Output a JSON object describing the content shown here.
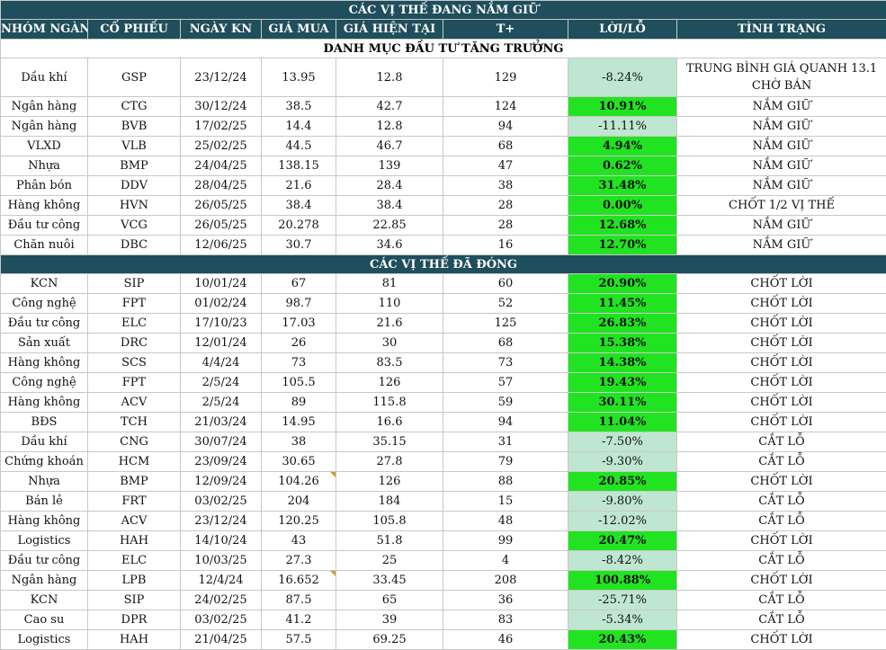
{
  "banner_top": "CÁC VỊ THẾ ĐANG NẮM GIỮ",
  "headers": [
    "NHÓM NGÀNH",
    "CỔ PHIẾU",
    "NGÀY KN",
    "GIÁ MUA",
    "GIÁ HIỆN TẠI",
    "T+",
    "LỜI/LỖ",
    "TÌNH TRẠNG"
  ],
  "section_open": "DANH MỤC ĐẦU TƯ TĂNG TRƯỞNG",
  "open_rows": [
    {
      "sector": "Dầu khí",
      "ticker": "GSP",
      "date": "23/12/24",
      "buy": "13.95",
      "current": "12.8",
      "t": "129",
      "pl": "-8.24%",
      "status": "TRUNG BÌNH GIÁ QUANH 13.1 CHỜ BÁN",
      "positive": false,
      "tall": true
    },
    {
      "sector": "Ngân hàng",
      "ticker": "CTG",
      "date": "30/12/24",
      "buy": "38.5",
      "current": "42.7",
      "t": "124",
      "pl": "10.91%",
      "status": "NẮM GIỮ",
      "positive": true
    },
    {
      "sector": "Ngân hàng",
      "ticker": "BVB",
      "date": "17/02/25",
      "buy": "14.4",
      "current": "12.8",
      "t": "94",
      "pl": "-11.11%",
      "status": "NẮM GIỮ",
      "positive": false
    },
    {
      "sector": "VLXD",
      "ticker": "VLB",
      "date": "25/02/25",
      "buy": "44.5",
      "current": "46.7",
      "t": "68",
      "pl": "4.94%",
      "status": "NẮM GIỮ",
      "positive": true
    },
    {
      "sector": "Nhựa",
      "ticker": "BMP",
      "date": "24/04/25",
      "buy": "138.15",
      "current": "139",
      "t": "47",
      "pl": "0.62%",
      "status": "NẮM GIỮ",
      "positive": true
    },
    {
      "sector": "Phân bón",
      "ticker": "DDV",
      "date": "28/04/25",
      "buy": "21.6",
      "current": "28.4",
      "t": "38",
      "pl": "31.48%",
      "status": "NẮM GIỮ",
      "positive": true
    },
    {
      "sector": "Hàng không",
      "ticker": "HVN",
      "date": "26/05/25",
      "buy": "38.4",
      "current": "38.4",
      "t": "28",
      "pl": "0.00%",
      "status": "CHỐT 1/2 VỊ THẾ",
      "positive": true
    },
    {
      "sector": "Đầu tư công",
      "ticker": "VCG",
      "date": "26/05/25",
      "buy": "20.278",
      "current": "22.85",
      "t": "28",
      "pl": "12.68%",
      "status": "NẮM GIỮ",
      "positive": true
    },
    {
      "sector": "Chăn nuôi",
      "ticker": "DBC",
      "date": "12/06/25",
      "buy": "30.7",
      "current": "34.6",
      "t": "16",
      "pl": "12.70%",
      "status": "NẮM GIỮ",
      "positive": true
    }
  ],
  "banner_closed": "CÁC VỊ THẾ ĐÃ ĐÓNG",
  "closed_rows": [
    {
      "sector": "KCN",
      "ticker": "SIP",
      "date": "10/01/24",
      "buy": "67",
      "current": "81",
      "t": "60",
      "pl": "20.90%",
      "status": "CHỐT LỜI",
      "positive": true
    },
    {
      "sector": "Công nghệ",
      "ticker": "FPT",
      "date": "01/02/24",
      "buy": "98.7",
      "current": "110",
      "t": "52",
      "pl": "11.45%",
      "status": "CHỐT LỜI",
      "positive": true
    },
    {
      "sector": "Đầu tư công",
      "ticker": "ELC",
      "date": "17/10/23",
      "buy": "17.03",
      "current": "21.6",
      "t": "125",
      "pl": "26.83%",
      "status": "CHỐT LỜI",
      "positive": true
    },
    {
      "sector": "Sản xuất",
      "ticker": "DRC",
      "date": "12/01/24",
      "buy": "26",
      "current": "30",
      "t": "68",
      "pl": "15.38%",
      "status": "CHỐT LỜI",
      "positive": true
    },
    {
      "sector": "Hàng không",
      "ticker": "SCS",
      "date": "4/4/24",
      "buy": "73",
      "current": "83.5",
      "t": "73",
      "pl": "14.38%",
      "status": "CHỐT LỜI",
      "positive": true
    },
    {
      "sector": "Công nghệ",
      "ticker": "FPT",
      "date": "2/5/24",
      "buy": "105.5",
      "current": "126",
      "t": "57",
      "pl": "19.43%",
      "status": "CHỐT LỜI",
      "positive": true
    },
    {
      "sector": "Hàng không",
      "ticker": "ACV",
      "date": "2/5/24",
      "buy": "89",
      "current": "115.8",
      "t": "59",
      "pl": "30.11%",
      "status": "CHỐT LỜI",
      "positive": true
    },
    {
      "sector": "BĐS",
      "ticker": "TCH",
      "date": "21/03/24",
      "buy": "14.95",
      "current": "16.6",
      "t": "94",
      "pl": "11.04%",
      "status": "CHỐT LỜI",
      "positive": true
    },
    {
      "sector": "Dầu khí",
      "ticker": "CNG",
      "date": "30/07/24",
      "buy": "38",
      "current": "35.15",
      "t": "31",
      "pl": "-7.50%",
      "status": "CẮT LỖ",
      "positive": false
    },
    {
      "sector": "Chứng khoán",
      "ticker": "HCM",
      "date": "23/09/24",
      "buy": "30.65",
      "current": "27.8",
      "t": "79",
      "pl": "-9.30%",
      "status": "CẮT LỖ",
      "positive": false
    },
    {
      "sector": "Nhựa",
      "ticker": "BMP",
      "date": "12/09/24",
      "buy": "104.26",
      "current": "126",
      "t": "88",
      "pl": "20.85%",
      "status": "CHỐT LỜI",
      "positive": true,
      "marked": true
    },
    {
      "sector": "Bán lẻ",
      "ticker": "FRT",
      "date": "03/02/25",
      "buy": "204",
      "current": "184",
      "t": "15",
      "pl": "-9.80%",
      "status": "CẮT LỖ",
      "positive": false
    },
    {
      "sector": "Hàng không",
      "ticker": "ACV",
      "date": "23/12/24",
      "buy": "120.25",
      "current": "105.8",
      "t": "48",
      "pl": "-12.02%",
      "status": "CẮT LỖ",
      "positive": false
    },
    {
      "sector": "Logistics",
      "ticker": "HAH",
      "date": "14/10/24",
      "buy": "43",
      "current": "51.8",
      "t": "99",
      "pl": "20.47%",
      "status": "CHỐT LỜI",
      "positive": true
    },
    {
      "sector": "Đầu tư công",
      "ticker": "ELC",
      "date": "10/03/25",
      "buy": "27.3",
      "current": "25",
      "t": "4",
      "pl": "-8.42%",
      "status": "CẮT LỖ",
      "positive": false
    },
    {
      "sector": "Ngân hàng",
      "ticker": "LPB",
      "date": "12/4/24",
      "buy": "16.652",
      "current": "33.45",
      "t": "208",
      "pl": "100.88%",
      "status": "CHỐT LỜI",
      "positive": true,
      "marked": true
    },
    {
      "sector": "KCN",
      "ticker": "SIP",
      "date": "24/02/25",
      "buy": "87.5",
      "current": "65",
      "t": "36",
      "pl": "-25.71%",
      "status": "CẮT LỖ",
      "positive": false
    },
    {
      "sector": "Cao su",
      "ticker": "DPR",
      "date": "03/02/25",
      "buy": "41.2",
      "current": "39",
      "t": "83",
      "pl": "-5.34%",
      "status": "CẮT LỖ",
      "positive": false
    },
    {
      "sector": "Logistics",
      "ticker": "HAH",
      "date": "21/04/25",
      "buy": "57.5",
      "current": "69.25",
      "t": "46",
      "pl": "20.43%",
      "status": "CHỐT LỜI",
      "positive": true
    }
  ]
}
